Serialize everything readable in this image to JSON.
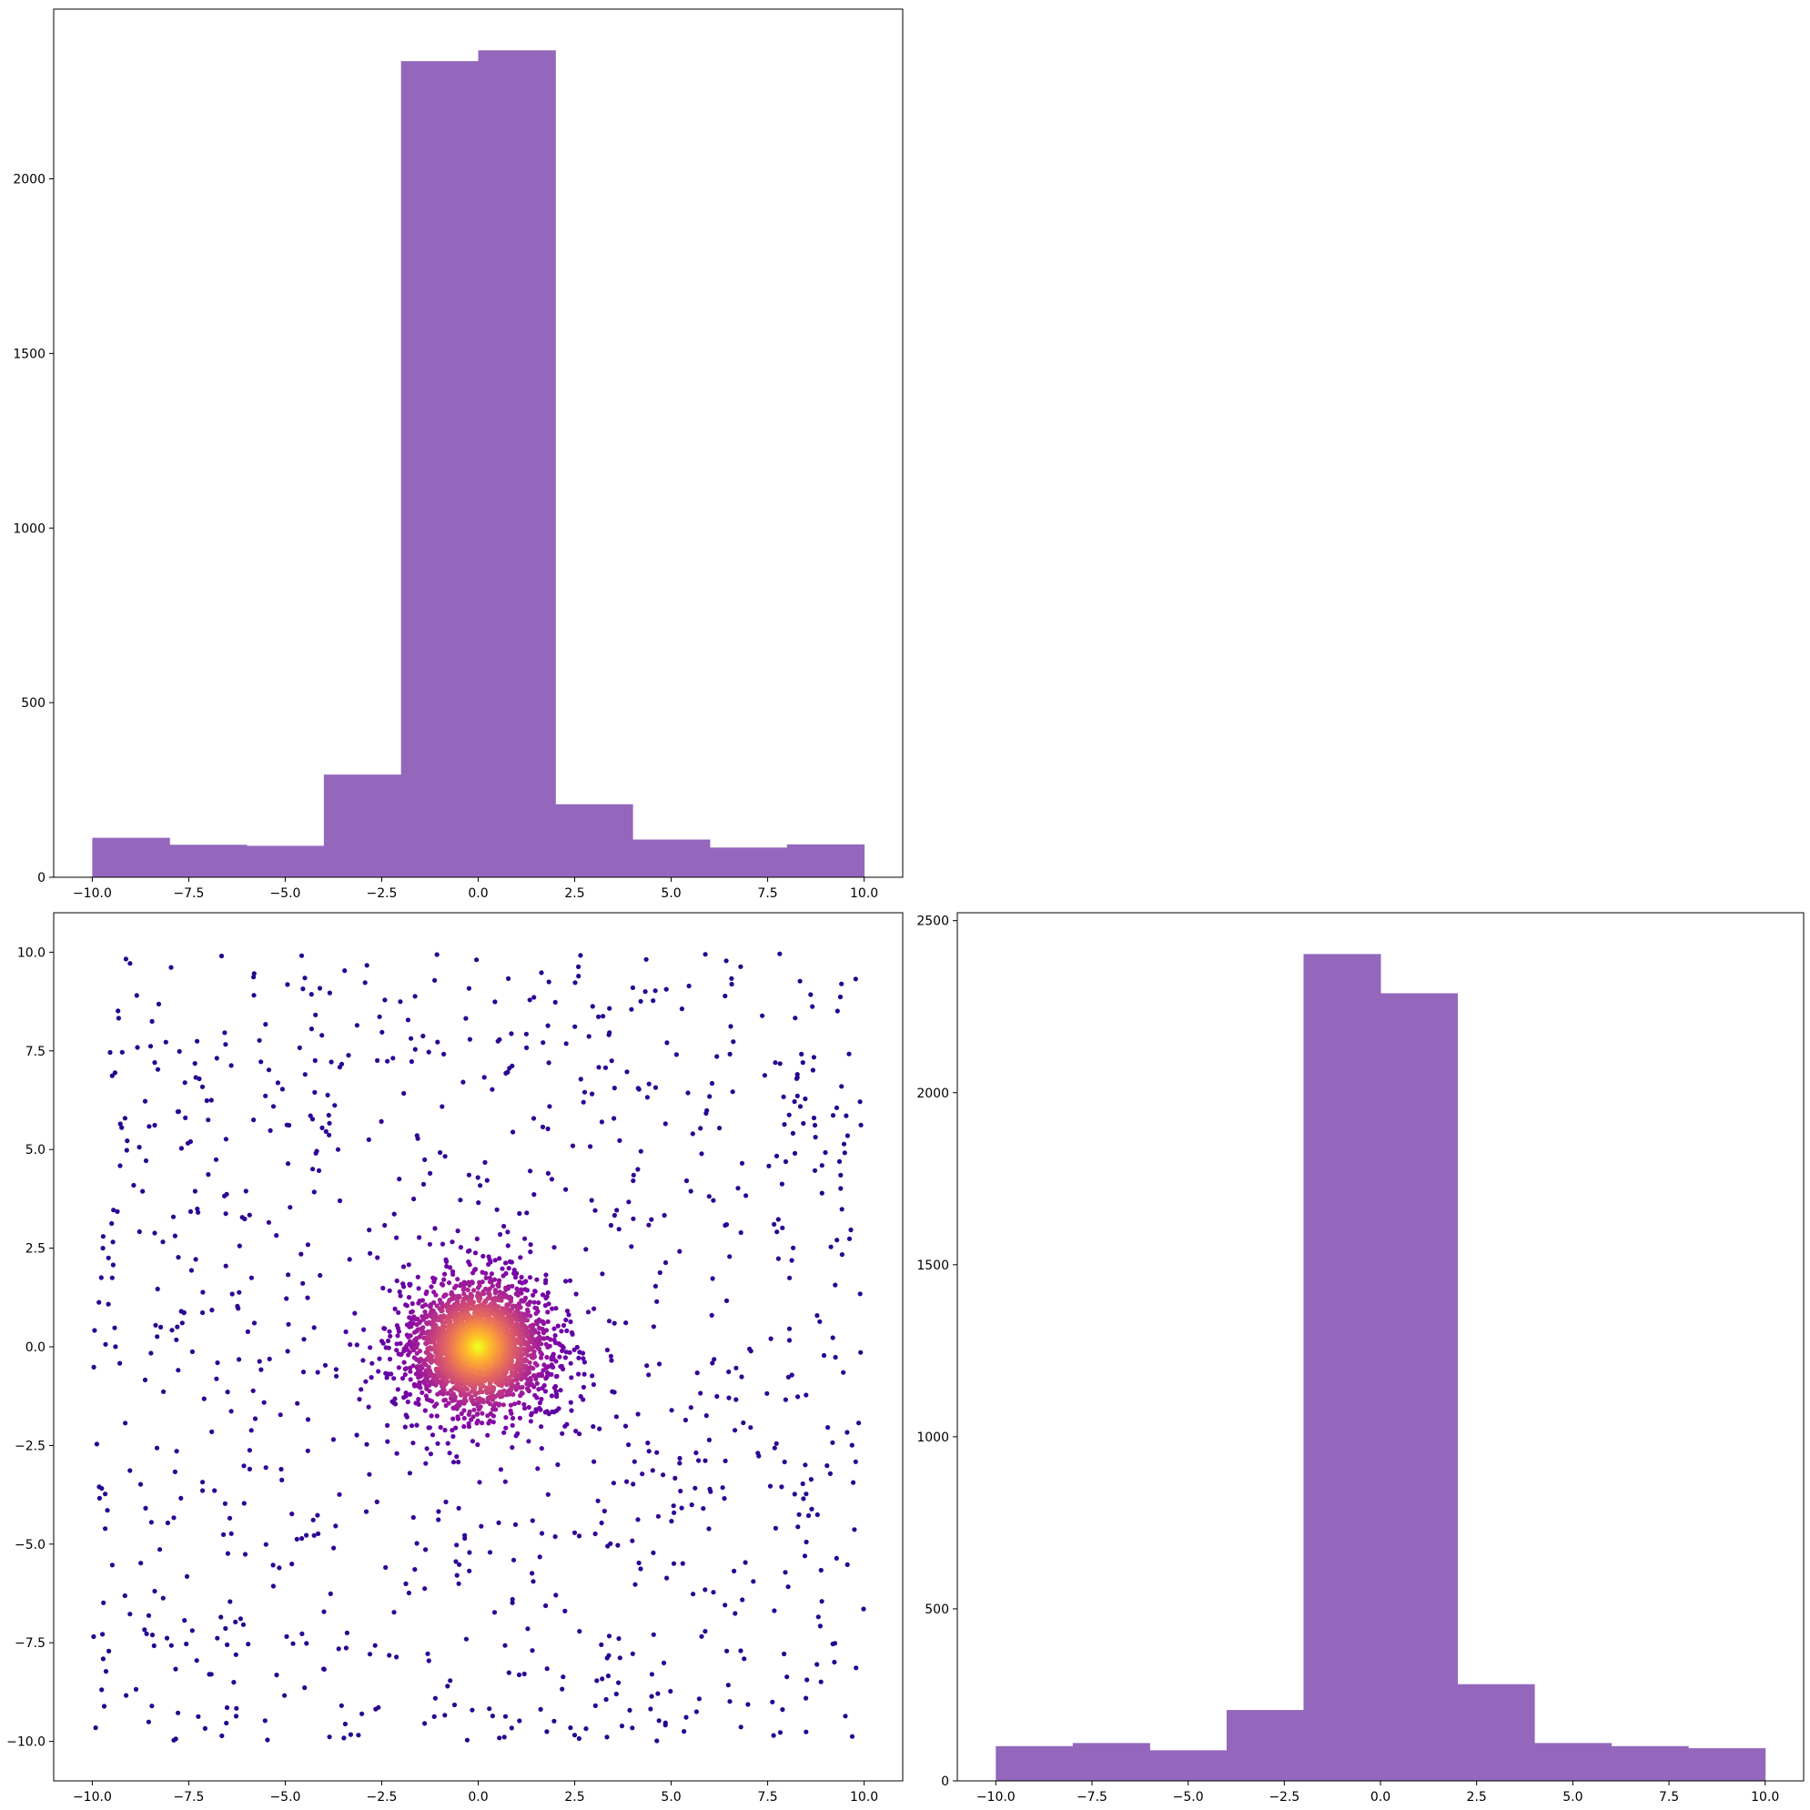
{
  "chart_data": [
    {
      "panel": "top-left",
      "type": "bar",
      "bin_edges": [
        -10,
        -8,
        -6,
        -4,
        -2,
        0,
        2,
        4,
        6,
        8,
        10
      ],
      "values": [
        113,
        93,
        90,
        294,
        2337,
        2368,
        209,
        108,
        85,
        94
      ],
      "xlim": [
        -11,
        11
      ],
      "ylim": [
        0,
        2486
      ],
      "xticks": [
        "−10.0",
        "−7.5",
        "−5.0",
        "−2.5",
        "0.0",
        "2.5",
        "5.0",
        "7.5",
        "10.0"
      ],
      "yticks": [
        "0",
        "500",
        "1000",
        "1500",
        "2000"
      ],
      "bar_color": "#9467bd"
    },
    {
      "panel": "bottom-left",
      "type": "scatter",
      "description_of_points": "about 1000 points uniform over [-10,10]x[-10,10] plus about 4000 points concentrated in a disk of radius ~3.5 centered at (0,0); colored by density (plasma colormap)",
      "uniform_count": 1000,
      "cluster_count": 4000,
      "cluster_center": [
        0,
        0
      ],
      "cluster_radius": 3.5,
      "xlim": [
        -11,
        11
      ],
      "ylim": [
        -11,
        11
      ],
      "xticks": [
        "−10.0",
        "−7.5",
        "−5.0",
        "−2.5",
        "0.0",
        "2.5",
        "5.0",
        "7.5",
        "10.0"
      ],
      "yticks": [
        "−10.0",
        "−7.5",
        "−5.0",
        "−2.5",
        "0.0",
        "2.5",
        "5.0",
        "7.5",
        "10.0"
      ],
      "colormap": "plasma"
    },
    {
      "panel": "bottom-right",
      "type": "bar",
      "bin_edges": [
        -10,
        -8,
        -6,
        -4,
        -2,
        0,
        2,
        4,
        6,
        8,
        10
      ],
      "values": [
        101,
        110,
        89,
        206,
        2403,
        2289,
        281,
        110,
        101,
        95
      ],
      "xlim": [
        -11,
        11
      ],
      "ylim": [
        0,
        2523
      ],
      "xticks": [
        "−10.0",
        "−7.5",
        "−5.0",
        "−2.5",
        "0.0",
        "2.5",
        "5.0",
        "7.5",
        "10.0"
      ],
      "yticks": [
        "0",
        "500",
        "1000",
        "1500",
        "2000",
        "2500"
      ],
      "bar_color": "#9467bd"
    }
  ]
}
